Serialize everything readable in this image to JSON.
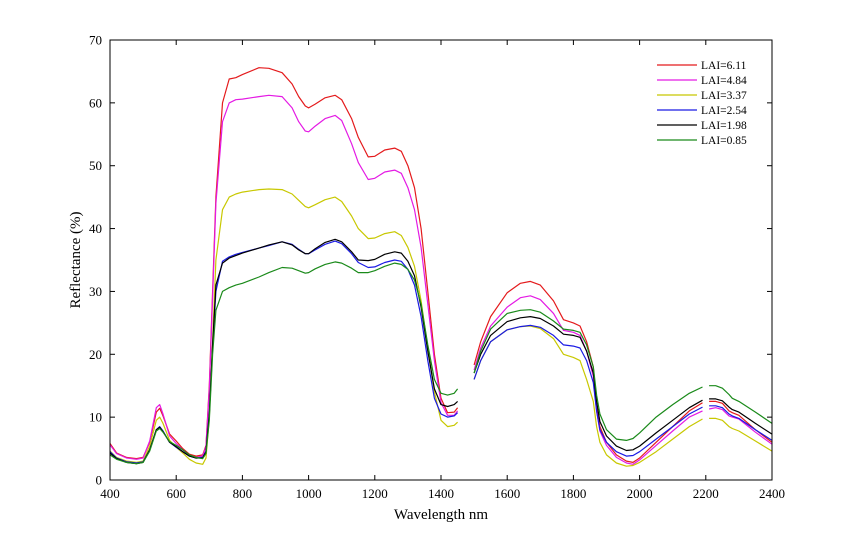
{
  "chart_data": {
    "type": "line",
    "title": "",
    "xlabel": "Wavelength  nm",
    "ylabel": "Reflectance (%)",
    "xlim": [
      400,
      2400
    ],
    "ylim": [
      0,
      70
    ],
    "xticks": [
      400,
      600,
      800,
      1000,
      1200,
      1400,
      1600,
      1800,
      2000,
      2200,
      2400
    ],
    "yticks": [
      0,
      10,
      20,
      30,
      40,
      50,
      60,
      70
    ],
    "grid": false,
    "legend_position": "top-right",
    "gaps": [
      [
        1450,
        1500
      ],
      [
        2190,
        2210
      ]
    ],
    "x": [
      400,
      420,
      450,
      480,
      500,
      520,
      540,
      550,
      560,
      580,
      600,
      620,
      640,
      660,
      680,
      690,
      700,
      710,
      720,
      740,
      760,
      780,
      800,
      850,
      880,
      920,
      950,
      970,
      990,
      1000,
      1020,
      1050,
      1080,
      1100,
      1130,
      1150,
      1180,
      1200,
      1230,
      1260,
      1280,
      1300,
      1320,
      1340,
      1360,
      1380,
      1400,
      1420,
      1440,
      1450,
      1500,
      1520,
      1550,
      1600,
      1640,
      1670,
      1700,
      1740,
      1770,
      1800,
      1820,
      1840,
      1860,
      1870,
      1880,
      1900,
      1930,
      1960,
      1980,
      2000,
      2050,
      2100,
      2150,
      2190,
      2210,
      2230,
      2250,
      2270,
      2280,
      2300,
      2350,
      2400
    ],
    "series": [
      {
        "name": "LAI=6.11",
        "color": "#e41a1c",
        "values": [
          5.8,
          4.3,
          3.6,
          3.4,
          3.6,
          6.0,
          10.8,
          11.4,
          10.2,
          7.3,
          6.2,
          5.0,
          4.1,
          3.8,
          4.0,
          5.5,
          15.0,
          30.0,
          45.0,
          60.0,
          63.8,
          64.0,
          64.5,
          65.6,
          65.5,
          64.8,
          63.0,
          61.0,
          59.5,
          59.2,
          59.8,
          60.8,
          61.2,
          60.5,
          57.5,
          54.5,
          51.4,
          51.5,
          52.5,
          52.8,
          52.3,
          50.0,
          46.5,
          40.0,
          30.0,
          20.0,
          13.0,
          10.7,
          10.8,
          11.5,
          18.3,
          22.0,
          26.0,
          29.8,
          31.3,
          31.6,
          31.0,
          28.5,
          25.5,
          25.0,
          24.5,
          22.0,
          18.0,
          12.0,
          8.5,
          6.0,
          4.0,
          3.0,
          2.8,
          3.5,
          6.0,
          8.5,
          11.0,
          12.3,
          12.5,
          12.5,
          12.2,
          11.0,
          10.7,
          10.3,
          8.0,
          6.0
        ]
      },
      {
        "name": "LAI=4.84",
        "color": "#e41ae4",
        "values": [
          5.6,
          4.2,
          3.5,
          3.3,
          3.5,
          6.2,
          11.5,
          12.0,
          10.5,
          7.0,
          5.8,
          4.8,
          3.9,
          3.6,
          3.8,
          5.3,
          14.5,
          29.0,
          44.0,
          57.0,
          60.0,
          60.5,
          60.6,
          61.0,
          61.2,
          61.0,
          59.2,
          57.0,
          55.5,
          55.4,
          56.3,
          57.5,
          58.0,
          57.2,
          53.5,
          50.5,
          47.8,
          48.0,
          49.0,
          49.3,
          48.8,
          46.5,
          43.0,
          37.0,
          28.0,
          19.0,
          12.3,
          10.3,
          10.3,
          11.0,
          17.5,
          21.0,
          24.5,
          27.5,
          29.0,
          29.3,
          28.7,
          26.5,
          23.8,
          23.5,
          23.0,
          20.5,
          16.5,
          11.0,
          7.8,
          5.5,
          3.6,
          2.7,
          2.5,
          3.2,
          5.5,
          7.8,
          10.0,
          11.0,
          11.3,
          11.5,
          11.2,
          10.2,
          10.0,
          9.7,
          7.6,
          5.7
        ]
      },
      {
        "name": "LAI=3.37",
        "color": "#c8c800",
        "values": [
          4.6,
          3.6,
          3.0,
          2.8,
          3.0,
          5.4,
          9.5,
          10.0,
          9.0,
          6.3,
          5.2,
          4.3,
          3.3,
          2.7,
          2.5,
          3.5,
          10.0,
          22.0,
          35.0,
          43.0,
          45.0,
          45.5,
          45.8,
          46.2,
          46.3,
          46.2,
          45.5,
          44.5,
          43.5,
          43.3,
          43.8,
          44.6,
          45.0,
          44.3,
          42.0,
          40.0,
          38.4,
          38.5,
          39.2,
          39.5,
          38.9,
          37.0,
          34.0,
          28.5,
          21.0,
          14.0,
          9.5,
          8.5,
          8.7,
          9.2,
          16.0,
          19.0,
          22.0,
          23.9,
          24.4,
          24.5,
          24.1,
          22.5,
          20.0,
          19.5,
          19.0,
          16.0,
          12.5,
          8.5,
          6.0,
          4.0,
          2.7,
          2.2,
          2.3,
          2.8,
          4.5,
          6.5,
          8.5,
          9.7,
          9.8,
          9.8,
          9.5,
          8.5,
          8.2,
          7.8,
          6.2,
          4.6
        ]
      },
      {
        "name": "LAI=2.54",
        "color": "#1a1ae4",
        "values": [
          4.5,
          3.5,
          2.9,
          2.7,
          2.9,
          4.8,
          8.0,
          8.5,
          7.8,
          6.0,
          5.2,
          4.5,
          3.8,
          3.5,
          3.6,
          4.6,
          10.5,
          21.0,
          30.0,
          34.8,
          35.5,
          35.9,
          36.2,
          36.9,
          37.3,
          37.9,
          37.5,
          36.7,
          36.0,
          36.0,
          36.6,
          37.5,
          38.0,
          37.6,
          36.0,
          34.6,
          33.8,
          33.9,
          34.6,
          35.0,
          34.8,
          33.5,
          31.0,
          26.0,
          19.0,
          13.0,
          10.5,
          10.0,
          10.2,
          10.7,
          16.0,
          19.0,
          22.0,
          23.9,
          24.4,
          24.6,
          24.3,
          23.0,
          21.5,
          21.3,
          21.0,
          19.0,
          15.5,
          11.0,
          8.0,
          6.0,
          4.5,
          3.8,
          3.9,
          4.5,
          6.5,
          8.5,
          10.5,
          11.6,
          11.8,
          11.8,
          11.5,
          10.5,
          10.2,
          9.8,
          8.0,
          6.3
        ]
      },
      {
        "name": "LAI=1.98",
        "color": "#000000",
        "values": [
          4.3,
          3.4,
          2.8,
          2.6,
          2.8,
          4.8,
          8.0,
          8.4,
          7.7,
          6.0,
          5.3,
          4.5,
          3.8,
          3.5,
          3.5,
          4.5,
          10.5,
          21.5,
          31.0,
          34.5,
          35.3,
          35.7,
          36.1,
          36.9,
          37.4,
          37.9,
          37.4,
          36.6,
          36.0,
          36.0,
          36.8,
          37.8,
          38.3,
          37.9,
          36.3,
          35.0,
          34.9,
          35.1,
          35.9,
          36.3,
          36.1,
          34.8,
          32.5,
          27.5,
          20.5,
          14.5,
          12.0,
          11.7,
          12.0,
          12.5,
          17.0,
          20.0,
          23.0,
          25.2,
          25.8,
          26.0,
          25.7,
          24.5,
          23.2,
          23.0,
          22.7,
          20.5,
          17.0,
          12.5,
          9.3,
          7.0,
          5.4,
          4.7,
          4.8,
          5.4,
          7.5,
          9.5,
          11.5,
          12.7,
          12.9,
          12.9,
          12.6,
          11.6,
          11.2,
          10.8,
          9.0,
          7.3
        ]
      },
      {
        "name": "LAI=0.85",
        "color": "#1a8a1a",
        "values": [
          4.0,
          3.3,
          2.8,
          2.6,
          2.8,
          4.6,
          7.8,
          8.2,
          7.6,
          6.1,
          5.5,
          4.8,
          4.0,
          3.6,
          3.4,
          4.2,
          9.5,
          20.0,
          27.0,
          30.0,
          30.6,
          31.0,
          31.3,
          32.3,
          33.0,
          33.8,
          33.7,
          33.3,
          32.9,
          33.0,
          33.6,
          34.3,
          34.7,
          34.5,
          33.7,
          33.0,
          33.0,
          33.3,
          34.0,
          34.5,
          34.3,
          33.5,
          31.8,
          28.0,
          21.5,
          16.0,
          13.8,
          13.5,
          13.8,
          14.5,
          17.0,
          20.5,
          24.0,
          26.5,
          27.0,
          27.1,
          26.7,
          25.3,
          24.0,
          23.8,
          23.5,
          21.5,
          18.0,
          13.5,
          10.5,
          8.0,
          6.5,
          6.3,
          6.6,
          7.5,
          10.0,
          12.0,
          13.8,
          14.8,
          15.0,
          15.0,
          14.6,
          13.6,
          13.0,
          12.5,
          10.8,
          9.0
        ]
      }
    ]
  }
}
